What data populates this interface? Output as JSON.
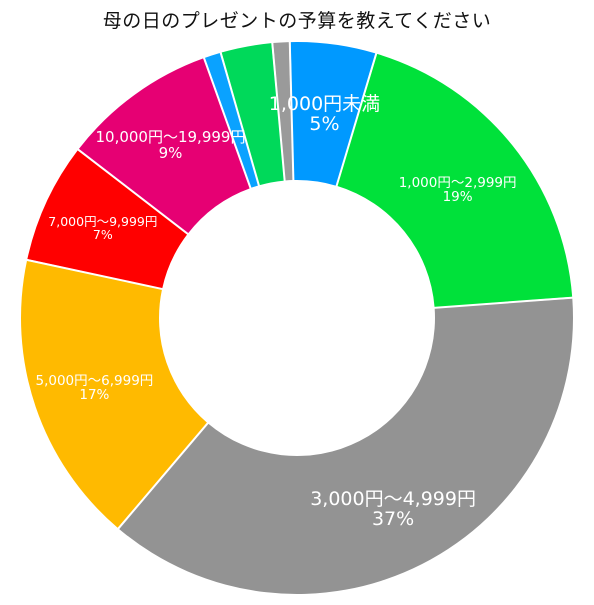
{
  "chart_data": {
    "type": "pie",
    "variant": "donut",
    "title": "母の日のプレゼントの予算を教えてください",
    "legend": "none",
    "slices": [
      {
        "label": "1,000円未満",
        "percent_label": "5%",
        "value": 5,
        "color": "#0099ff"
      },
      {
        "label": "1,000円〜2,999円",
        "percent_label": "19%",
        "value": 19,
        "color": "#00e13a"
      },
      {
        "label": "3,000円〜4,999円",
        "percent_label": "37%",
        "value": 37,
        "color": "#939393"
      },
      {
        "label": "5,000円〜6,999円",
        "percent_label": "17%",
        "value": 17,
        "color": "#ffba00"
      },
      {
        "label": "7,000円〜9,999円",
        "percent_label": "7%",
        "value": 7,
        "color": "#ff0000"
      },
      {
        "label": "10,000円〜19,999円",
        "percent_label": "9%",
        "value": 9,
        "color": "#e60073"
      },
      {
        "label": "",
        "percent_label": "",
        "value": 1,
        "color": "#0aa2ff"
      },
      {
        "label": "",
        "percent_label": "",
        "value": 3,
        "color": "#00d95a"
      },
      {
        "label": "",
        "percent_label": "",
        "value": 1,
        "color": "#9a9a9a"
      }
    ]
  }
}
